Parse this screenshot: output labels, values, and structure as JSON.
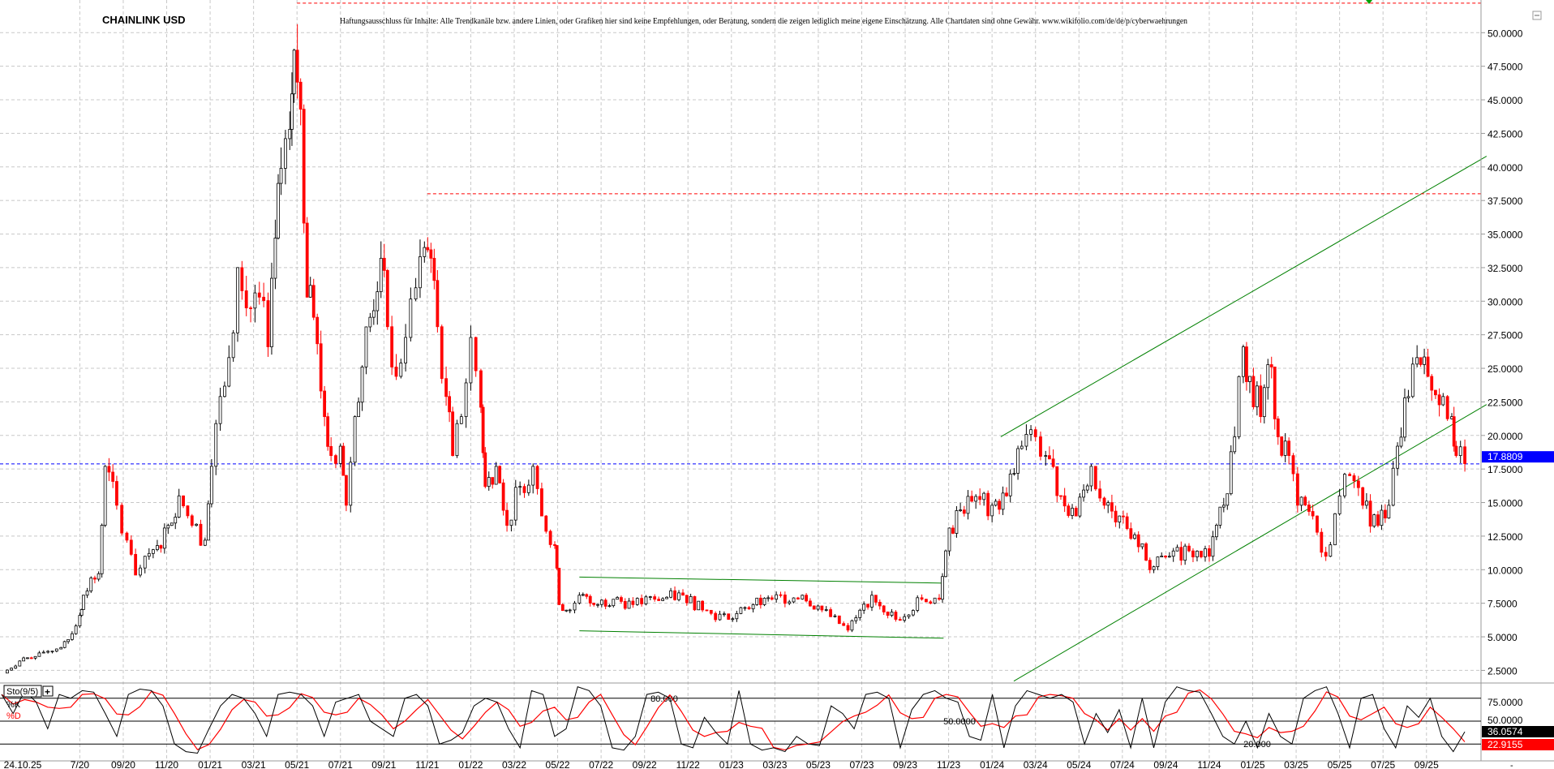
{
  "chart_data": {
    "type": "candlestick",
    "title": "CHAINLINK USD",
    "disclaimer": "Haftungsausschluss für Inhalte: Alle Trendkanäle bzw. andere Linien, oder Grafiken hier sind keine Empfehlungen, oder Beratung, sondern die zeigen lediglich meine eigene Einschätzung. Alle Chartdaten sind ohne Gewähr.  www.wikifolio.com/de/de/p/cyberwaehrungen",
    "ylim": [
      1.8,
      52.5
    ],
    "y_ticks": [
      "50.0000",
      "47.5000",
      "45.0000",
      "42.5000",
      "40.0000",
      "37.5000",
      "35.0000",
      "32.5000",
      "30.0000",
      "27.5000",
      "25.0000",
      "22.5000",
      "20.0000",
      "17.5000",
      "15.0000",
      "12.5000",
      "10.0000",
      "7.5000",
      "5.0000",
      "2.5000"
    ],
    "x_tick_labels": [
      "24.10.25",
      "7/20",
      "09/20",
      "11/20",
      "01/21",
      "03/21",
      "05/21",
      "07/21",
      "09/21",
      "11/21",
      "01/22",
      "03/22",
      "05/22",
      "07/22",
      "09/22",
      "11/22",
      "01/23",
      "03/23",
      "05/23",
      "07/23",
      "09/23",
      "11/23",
      "01/24",
      "03/24",
      "05/24",
      "07/24",
      "09/24",
      "11/24",
      "01/25",
      "03/25",
      "05/25",
      "07/25",
      "09/25"
    ],
    "grid": true,
    "colors": {
      "up": "#000000",
      "down": "#ff0000",
      "trend": "#008000",
      "resistance": "#ff0000",
      "last_price": "#0000ff"
    },
    "last_price": "17.8809",
    "closes": [
      [
        "2020-03-15",
        2.3
      ],
      [
        "2020-04-08",
        3.2
      ],
      [
        "2020-05-05",
        3.8
      ],
      [
        "2020-06-05",
        4.2
      ],
      [
        "2020-06-15",
        4.8
      ],
      [
        "2020-07-01",
        6.6
      ],
      [
        "2020-07-06",
        8.1
      ],
      [
        "2020-07-27",
        9.7
      ],
      [
        "2020-08-06",
        17.7
      ],
      [
        "2020-08-22",
        14.8
      ],
      [
        "2020-09-06",
        12.2
      ],
      [
        "2020-09-18",
        9.6
      ],
      [
        "2020-10-01",
        11.0
      ],
      [
        "2020-10-18",
        11.8
      ],
      [
        "2020-11-03",
        13.3
      ],
      [
        "2020-11-18",
        15.5
      ],
      [
        "2020-12-06",
        13.3
      ],
      [
        "2020-12-24",
        12.2
      ],
      [
        "2021-01-03",
        17.7
      ],
      [
        "2021-01-15",
        22.9
      ],
      [
        "2021-01-27",
        25.8
      ],
      [
        "2021-02-09",
        32.5
      ],
      [
        "2021-02-21",
        29.5
      ],
      [
        "2021-03-09",
        30.3
      ],
      [
        "2021-03-21",
        26.6
      ],
      [
        "2021-04-01",
        34.7
      ],
      [
        "2021-04-09",
        39.9
      ],
      [
        "2021-04-21",
        42.8
      ],
      [
        "2021-04-27",
        48.7
      ],
      [
        "2021-05-06",
        44.3
      ],
      [
        "2021-05-15",
        30.3
      ],
      [
        "2021-05-24",
        28.8
      ],
      [
        "2021-06-09",
        21.4
      ],
      [
        "2021-06-18",
        18.5
      ],
      [
        "2021-07-01",
        19.2
      ],
      [
        "2021-07-09",
        14.8
      ],
      [
        "2021-07-21",
        21.4
      ],
      [
        "2021-08-01",
        25.1
      ],
      [
        "2021-08-12",
        28.8
      ],
      [
        "2021-08-27",
        33.2
      ],
      [
        "2021-09-06",
        28.1
      ],
      [
        "2021-09-18",
        24.4
      ],
      [
        "2021-10-01",
        27.3
      ],
      [
        "2021-10-15",
        31.0
      ],
      [
        "2021-10-27",
        34.0
      ],
      [
        "2021-11-06",
        33.2
      ],
      [
        "2021-11-15",
        28.1
      ],
      [
        "2021-11-27",
        22.9
      ],
      [
        "2021-12-06",
        18.5
      ],
      [
        "2021-12-18",
        21.4
      ],
      [
        "2022-01-01",
        27.3
      ],
      [
        "2022-01-15",
        22.1
      ],
      [
        "2022-01-21",
        16.2
      ],
      [
        "2022-02-06",
        17.7
      ],
      [
        "2022-02-21",
        13.3
      ],
      [
        "2022-03-09",
        16.2
      ],
      [
        "2022-03-27",
        17.7
      ],
      [
        "2022-04-09",
        14.0
      ],
      [
        "2022-04-27",
        11.8
      ],
      [
        "2022-05-03",
        7.4
      ],
      [
        "2022-05-18",
        7.0
      ],
      [
        "2022-06-01",
        8.1
      ],
      [
        "2022-06-21",
        7.4
      ],
      [
        "2022-07-18",
        7.8
      ],
      [
        "2022-08-15",
        7.4
      ],
      [
        "2022-09-15",
        7.8
      ],
      [
        "2022-10-24",
        8.1
      ],
      [
        "2022-11-21",
        7.0
      ],
      [
        "2022-12-27",
        6.3
      ],
      [
        "2023-02-01",
        7.4
      ],
      [
        "2023-02-27",
        7.8
      ],
      [
        "2023-04-09",
        8.1
      ],
      [
        "2023-05-06",
        7.0
      ],
      [
        "2023-06-12",
        5.5
      ],
      [
        "2023-07-15",
        8.1
      ],
      [
        "2023-08-18",
        6.3
      ],
      [
        "2023-09-24",
        7.8
      ],
      [
        "2023-10-18",
        7.8
      ],
      [
        "2023-10-27",
        11.4
      ],
      [
        "2023-11-12",
        14.4
      ],
      [
        "2023-12-03",
        15.1
      ],
      [
        "2024-01-01",
        14.8
      ],
      [
        "2024-01-21",
        15.5
      ],
      [
        "2024-02-12",
        19.2
      ],
      [
        "2024-03-01",
        19.9
      ],
      [
        "2024-03-15",
        18.5
      ],
      [
        "2024-04-06",
        15.5
      ],
      [
        "2024-04-27",
        14.0
      ],
      [
        "2024-05-18",
        17.7
      ],
      [
        "2024-06-06",
        14.8
      ],
      [
        "2024-06-27",
        14.0
      ],
      [
        "2024-07-18",
        12.6
      ],
      [
        "2024-08-09",
        10.0
      ],
      [
        "2024-09-06",
        11.0
      ],
      [
        "2024-10-03",
        11.4
      ],
      [
        "2024-11-01",
        11.0
      ],
      [
        "2024-11-21",
        14.8
      ],
      [
        "2024-12-06",
        19.9
      ],
      [
        "2024-12-18",
        26.6
      ],
      [
        "2024-12-27",
        24.4
      ],
      [
        "2025-01-12",
        21.4
      ],
      [
        "2025-01-27",
        25.1
      ],
      [
        "2025-02-06",
        19.9
      ],
      [
        "2025-02-21",
        18.5
      ],
      [
        "2025-03-03",
        14.8
      ],
      [
        "2025-03-24",
        14.0
      ],
      [
        "2025-04-12",
        11.0
      ],
      [
        "2025-05-01",
        15.5
      ],
      [
        "2025-05-15",
        17.0
      ],
      [
        "2025-06-03",
        14.8
      ],
      [
        "2025-06-24",
        13.3
      ],
      [
        "2025-07-09",
        14.8
      ],
      [
        "2025-07-21",
        19.2
      ],
      [
        "2025-08-06",
        22.9
      ],
      [
        "2025-08-18",
        25.8
      ],
      [
        "2025-09-03",
        24.4
      ],
      [
        "2025-09-24",
        22.9
      ],
      [
        "2025-10-06",
        21.4
      ],
      [
        "2025-10-12",
        18.5
      ],
      [
        "2025-10-24",
        17.9
      ]
    ],
    "lines": [
      {
        "kind": "trend-upper",
        "color": "#008000",
        "from": [
          "2024-01-13",
          19.9
        ],
        "to": [
          "2025-11-24",
          40.8
        ]
      },
      {
        "kind": "trend-lower",
        "color": "#008000",
        "from": [
          "2024-02-01",
          1.7
        ],
        "to": [
          "2025-11-24",
          22.3
        ]
      },
      {
        "kind": "range-upper",
        "color": "#008000",
        "from": [
          "2022-06-01",
          9.45
        ],
        "to": [
          "2023-10-24",
          9.0
        ]
      },
      {
        "kind": "range-lower",
        "color": "#008000",
        "from": [
          "2022-06-01",
          5.45
        ],
        "to": [
          "2023-10-24",
          4.9
        ]
      },
      {
        "kind": "resistance",
        "color": "#ff0000",
        "dashed": true,
        "from": [
          "2021-11-01",
          38.0
        ],
        "to": [
          "2025-12-31",
          38.0
        ]
      },
      {
        "kind": "ath",
        "color": "#ff0000",
        "dashed": true,
        "from": [
          "2021-05-01",
          52.2
        ],
        "to": [
          "2025-12-31",
          52.2
        ]
      }
    ],
    "stochastic": {
      "label": "Sto(9/5)",
      "k_label": "%K",
      "d_label": "%D",
      "k_color": "#000000",
      "d_color": "#ff0000",
      "levels": [
        "80.000",
        "50.0000",
        "20.000"
      ],
      "axis_ticks": [
        "75.0000",
        "50.0000"
      ],
      "k_value": "36.0574",
      "d_value": "22.9155",
      "k": [
        85,
        60,
        90,
        75,
        40,
        85,
        80,
        90,
        88,
        60,
        30,
        85,
        92,
        90,
        70,
        20,
        10,
        8,
        40,
        70,
        85,
        80,
        60,
        30,
        85,
        88,
        85,
        70,
        30,
        75,
        80,
        85,
        50,
        40,
        30,
        80,
        85,
        70,
        20,
        25,
        35,
        70,
        80,
        75,
        40,
        15,
        90,
        85,
        30,
        40,
        95,
        90,
        70,
        15,
        12,
        30,
        85,
        88,
        80,
        20,
        15,
        55,
        35,
        20,
        90,
        20,
        12,
        15,
        10,
        30,
        20,
        18,
        70,
        60,
        40,
        85,
        88,
        80,
        15,
        65,
        85,
        90,
        80,
        75,
        30,
        25,
        85,
        15,
        70,
        90,
        85,
        80,
        85,
        75,
        20,
        60,
        35,
        65,
        15,
        80,
        15,
        75,
        95,
        90,
        88,
        60,
        30,
        20,
        50,
        15,
        60,
        30,
        20,
        80,
        90,
        95,
        60,
        15,
        80,
        85,
        40,
        15,
        70,
        55,
        80,
        30,
        10,
        36
      ]
    }
  }
}
